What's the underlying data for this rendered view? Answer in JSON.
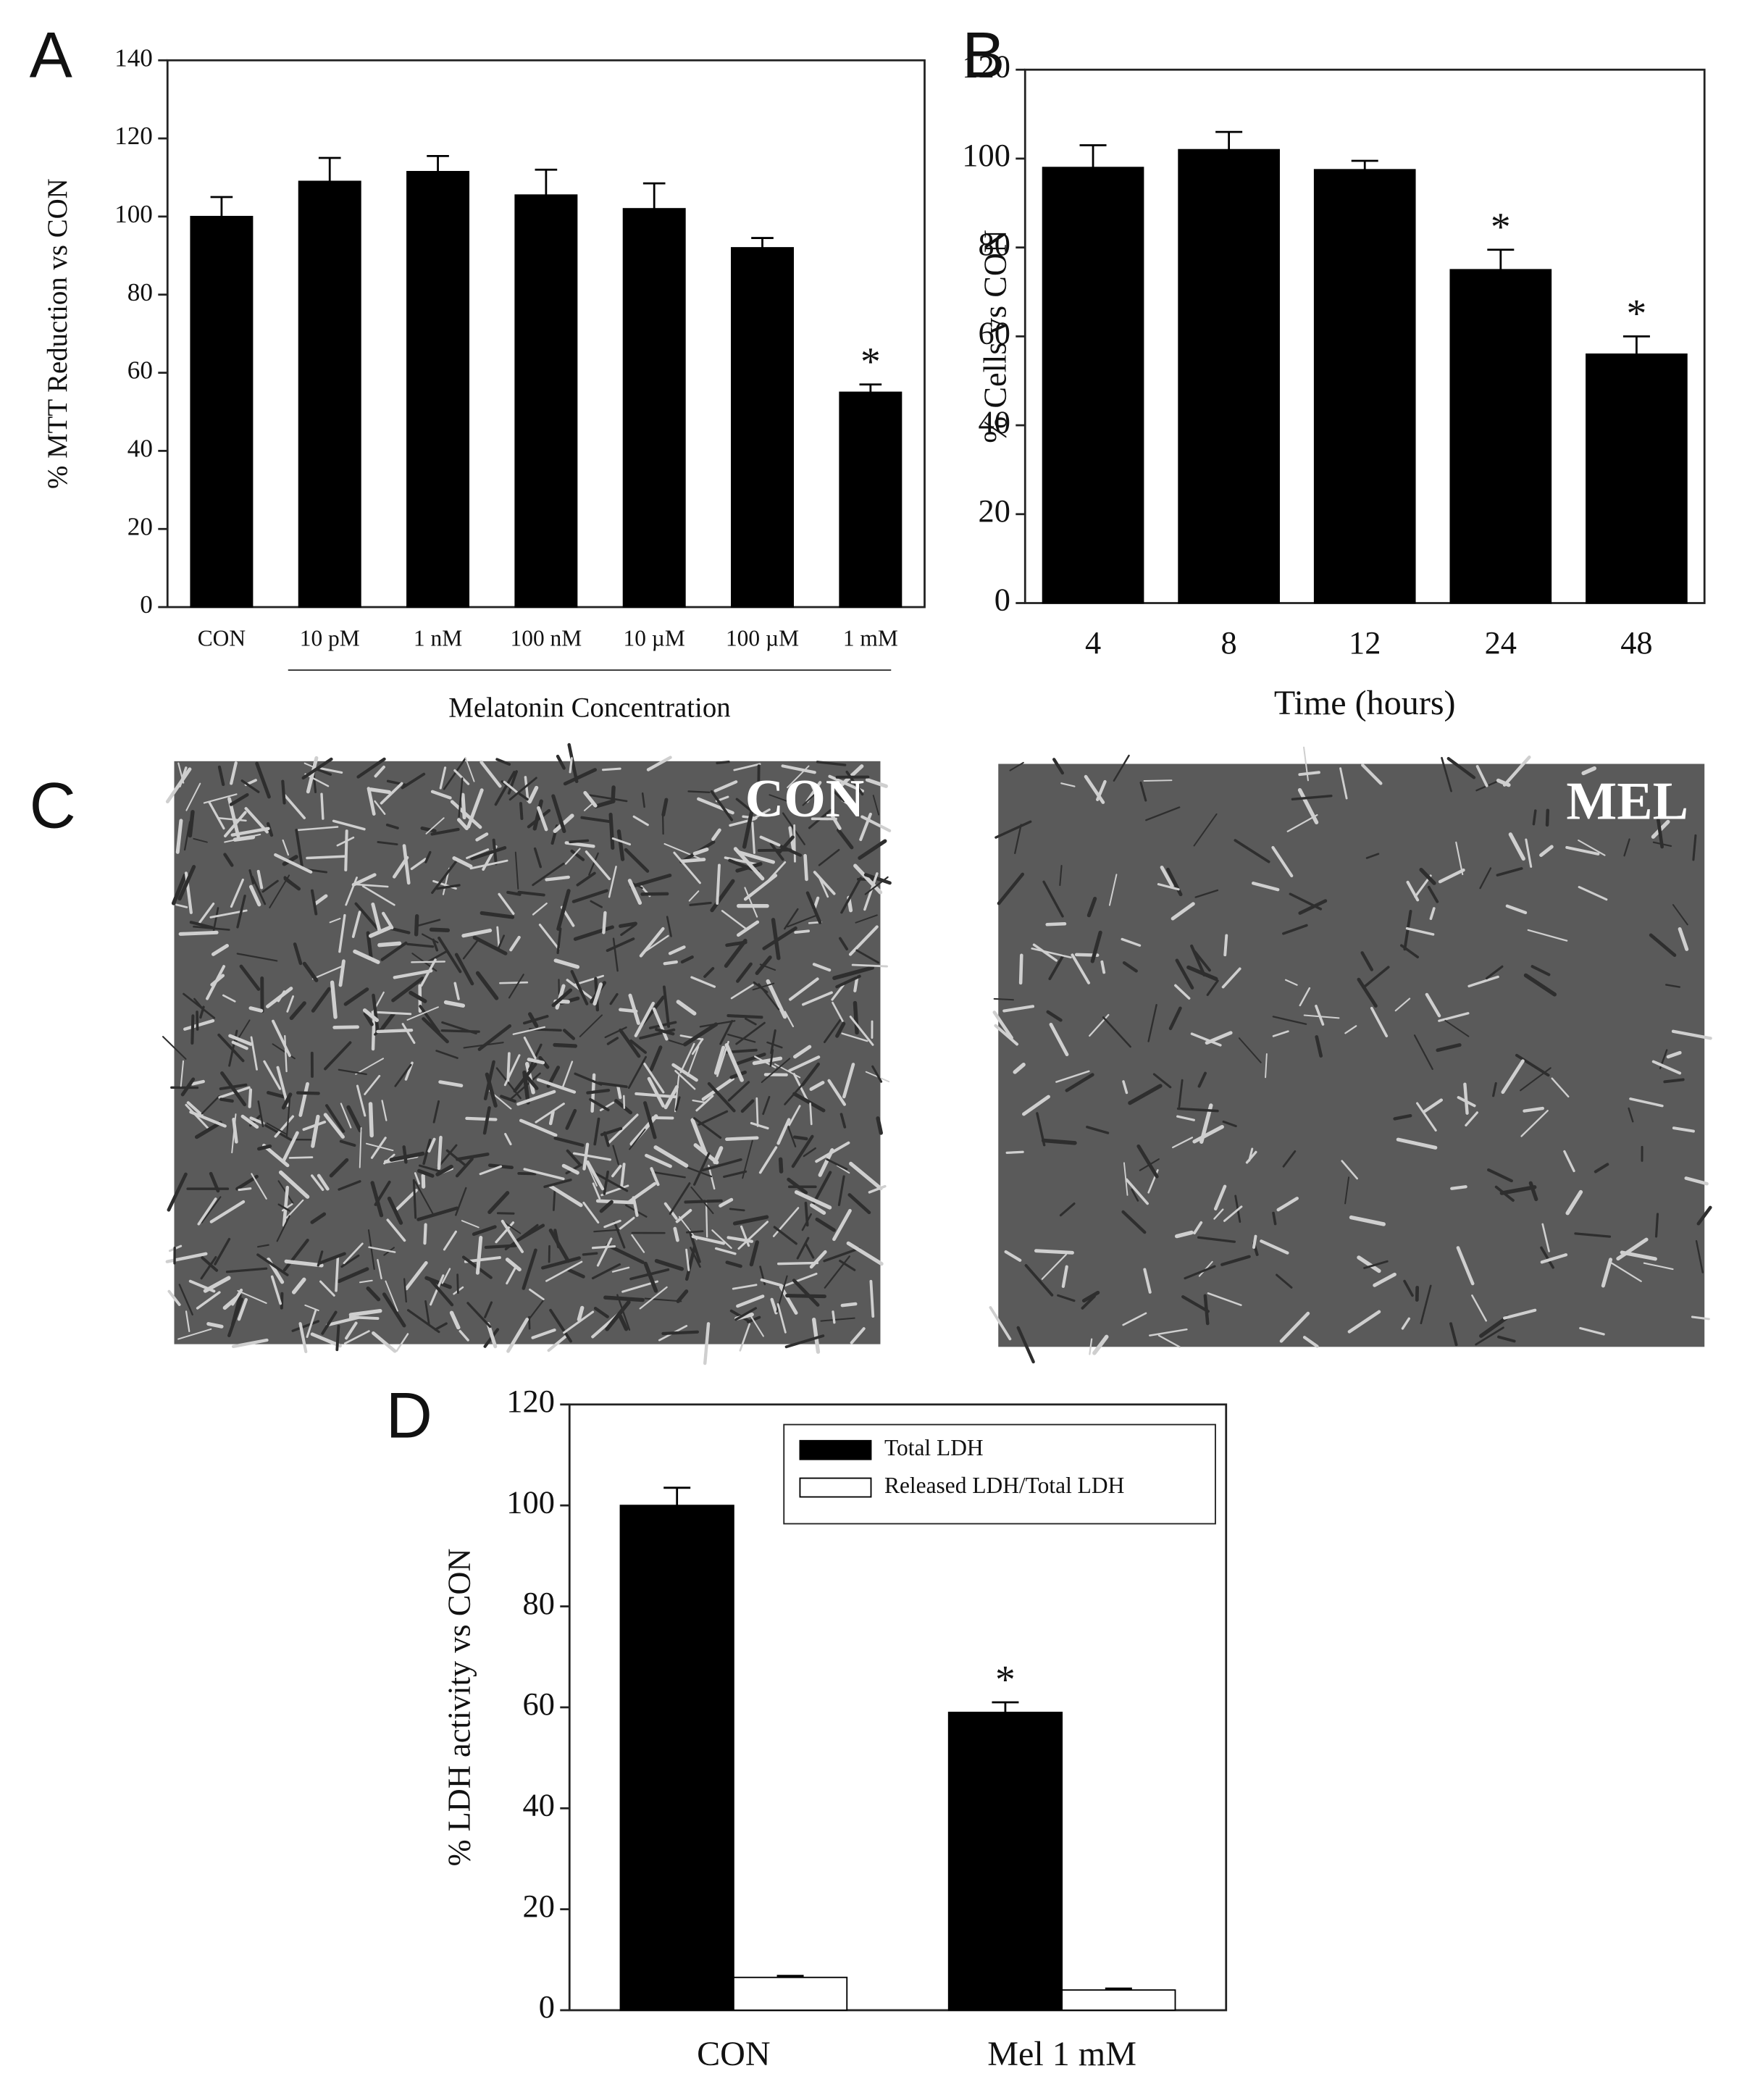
{
  "chart_data": [
    {
      "type": "bar",
      "panel_label": "A",
      "ylabel": "% MTT Reduction vs CON",
      "xlabel": "Melatonin Concentration",
      "categories": [
        "CON",
        "10 pM",
        "1 nM",
        "100 nM",
        "10 µM",
        "100 µM",
        "1 mM"
      ],
      "values": [
        100,
        109,
        111.5,
        105.5,
        102,
        92,
        55
      ],
      "errors": [
        5,
        6,
        4,
        6.5,
        6.5,
        2.5,
        2
      ],
      "color": "#000000",
      "ylim": [
        0,
        140
      ],
      "yticks": [
        0,
        20,
        40,
        60,
        80,
        100,
        120,
        140
      ],
      "annotations": [
        {
          "text": "*",
          "category": "1 mM"
        }
      ]
    },
    {
      "type": "bar",
      "panel_label": "B",
      "ylabel": "% Cells vs CON",
      "xlabel": "Time (hours)",
      "categories": [
        "4",
        "8",
        "12",
        "24",
        "48"
      ],
      "values": [
        98,
        102,
        97.5,
        75,
        56
      ],
      "errors": [
        5,
        4,
        2,
        4.5,
        4
      ],
      "color": "#000000",
      "ylim": [
        0,
        120
      ],
      "yticks": [
        0,
        20,
        40,
        60,
        80,
        100,
        120
      ],
      "annotations": [
        {
          "text": "*",
          "category": "24"
        },
        {
          "text": "*",
          "category": "48"
        }
      ]
    },
    {
      "type": "bar",
      "panel_label": "D",
      "ylabel": "% LDH activity vs CON",
      "categories": [
        "CON",
        "Mel 1 mM"
      ],
      "series": [
        {
          "name": "Total LDH",
          "color": "#000000",
          "values": [
            100,
            59
          ],
          "errors": [
            3.5,
            2
          ]
        },
        {
          "name": "Released LDH/Total LDH",
          "color": "#ffffff",
          "values": [
            6.5,
            4
          ],
          "errors": [
            0.3,
            0.3
          ]
        }
      ],
      "ylim": [
        0,
        120
      ],
      "yticks": [
        0,
        20,
        40,
        60,
        80,
        100,
        120
      ],
      "legend": "upper right",
      "annotations": [
        {
          "text": "*",
          "category": "Mel 1 mM",
          "series": "Total LDH"
        }
      ]
    }
  ],
  "panel_c": {
    "panel_label": "C",
    "images": [
      {
        "label": "CON"
      },
      {
        "label": "MEL"
      }
    ]
  }
}
